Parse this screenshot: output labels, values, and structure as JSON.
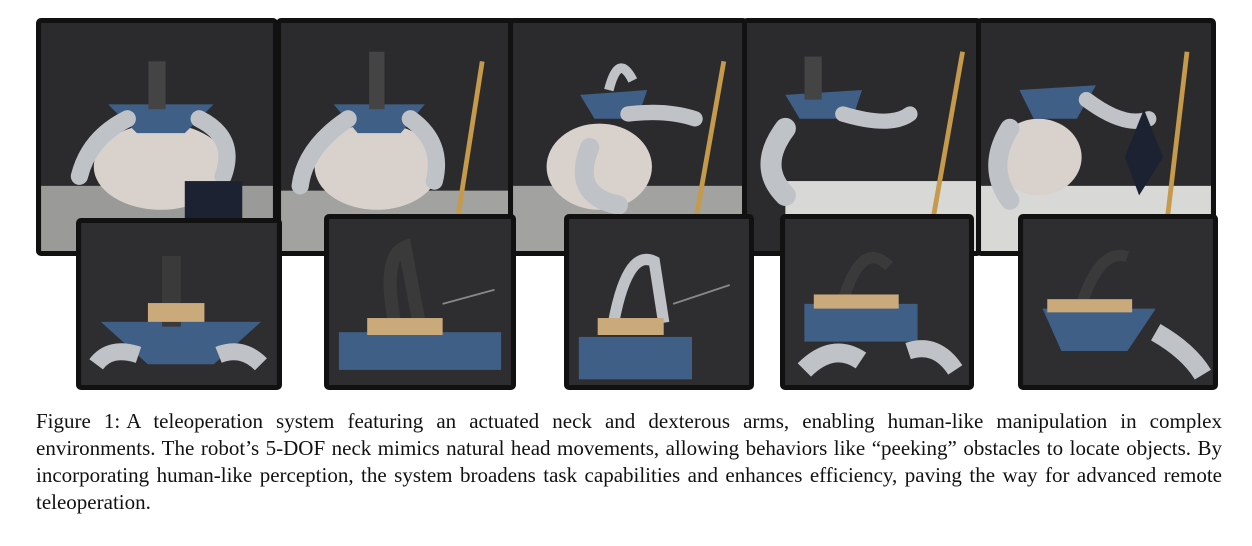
{
  "figure": {
    "top_row": [
      {
        "name": "top-photo-1",
        "depicts": "robot-wide-view"
      },
      {
        "name": "top-photo-2",
        "depicts": "robot-wide-view"
      },
      {
        "name": "top-photo-3",
        "depicts": "robot-wide-view"
      },
      {
        "name": "top-photo-4",
        "depicts": "robot-wide-view"
      },
      {
        "name": "top-photo-5",
        "depicts": "robot-wide-view"
      }
    ],
    "bottom_row": [
      {
        "name": "bottom-photo-1",
        "depicts": "neck-closeup"
      },
      {
        "name": "bottom-photo-2",
        "depicts": "neck-closeup"
      },
      {
        "name": "bottom-photo-3",
        "depicts": "neck-closeup"
      },
      {
        "name": "bottom-photo-4",
        "depicts": "neck-closeup"
      },
      {
        "name": "bottom-photo-5",
        "depicts": "neck-closeup"
      }
    ],
    "colors": {
      "frame": "#111111",
      "backdrop": "#2a2a2c",
      "robot_metal": "#bfc3c8",
      "panel_blue": "#3f5f86"
    }
  },
  "caption": {
    "label": "Figure 1:",
    "text": "A teleoperation system featuring an actuated neck and dexterous arms, enabling human-like manipulation in complex environments. The robot’s 5-DOF neck mimics natural head movements, allowing behaviors like “peeking” obstacles to locate objects. By incorporating human-like perception, the system broadens task capabilities and enhances efficiency, paving the way for advanced remote teleoperation."
  }
}
